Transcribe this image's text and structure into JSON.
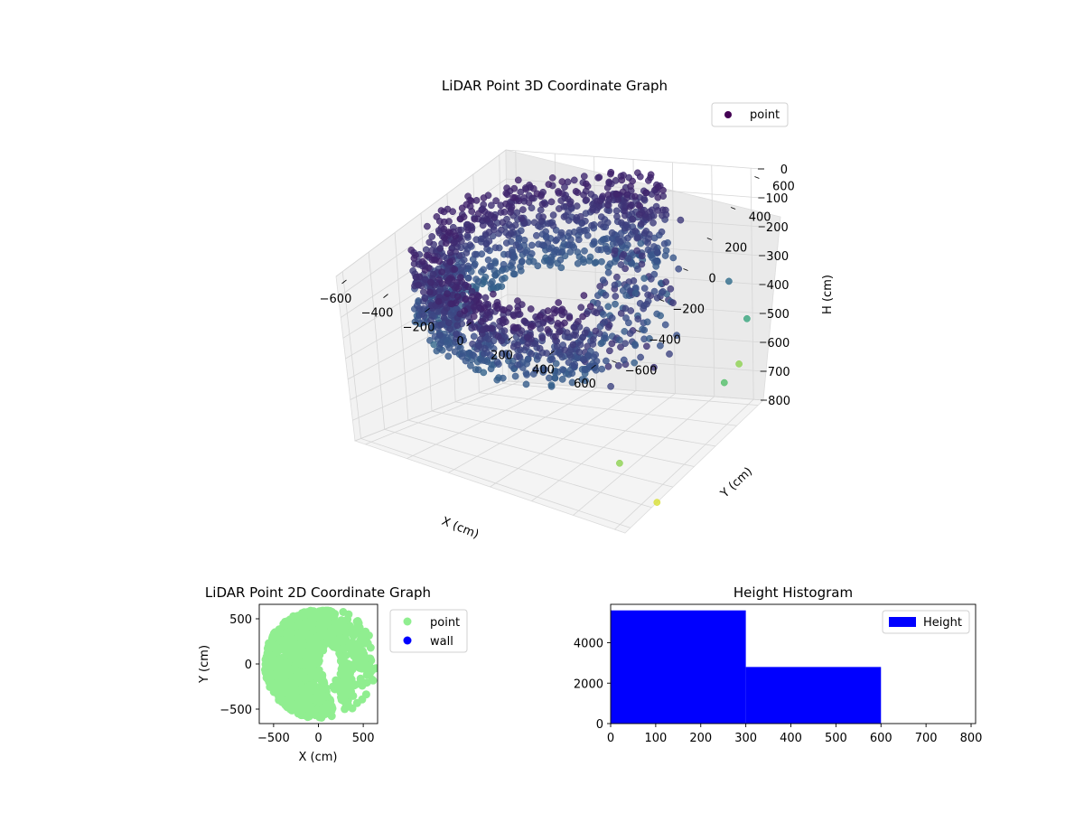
{
  "chart_data": [
    {
      "type": "scatter",
      "projection": "3d",
      "title": "LiDAR Point 3D Coordinate Graph",
      "xlabel": "X (cm)",
      "ylabel": "Y (cm)",
      "zlabel": "H (cm)",
      "x_ticks": [
        "−600",
        "−400",
        "−200",
        "0",
        "200",
        "400",
        "600"
      ],
      "y_ticks": [
        "−600",
        "−400",
        "−200",
        "0",
        "200",
        "400",
        "600"
      ],
      "z_ticks": [
        "0",
        "100",
        "200",
        "300",
        "400",
        "500",
        "600",
        "700",
        "800"
      ],
      "xlim": [
        -650,
        650
      ],
      "ylim": [
        -650,
        650
      ],
      "zlim": [
        0,
        800
      ],
      "z_axis_inverted": true,
      "grid": true,
      "colormap": "viridis",
      "legend": {
        "placement": "upper-right",
        "entries": [
          {
            "label": "point",
            "color": "#440154"
          }
        ]
      },
      "description_of_data": "Dense cylindrical shell of points at radius ~400-600 cm, heights mostly 0-300 cm, open toward +X",
      "series": [
        {
          "name": "point",
          "points_sample": [
            {
              "x": -550,
              "y": 0,
              "h": 200
            },
            {
              "x": -450,
              "y": -300,
              "h": 250
            },
            {
              "x": -300,
              "y": -500,
              "h": 280
            },
            {
              "x": 0,
              "y": -600,
              "h": 270
            },
            {
              "x": 300,
              "y": -550,
              "h": 260
            },
            {
              "x": -450,
              "y": 300,
              "h": 150
            },
            {
              "x": -250,
              "y": 500,
              "h": 120
            },
            {
              "x": 0,
              "y": 600,
              "h": 100
            },
            {
              "x": 300,
              "y": 550,
              "h": 150
            },
            {
              "x": 600,
              "y": 450,
              "h": 300
            },
            {
              "x": 600,
              "y": 600,
              "h": 500
            },
            {
              "x": 650,
              "y": 300,
              "h": 600
            },
            {
              "x": 450,
              "y": -300,
              "h": 700
            },
            {
              "x": 500,
              "y": 700,
              "h": 700
            },
            {
              "x": 650,
              "y": -350,
              "h": 800
            }
          ]
        }
      ]
    },
    {
      "type": "scatter",
      "title": "LiDAR Point 2D Coordinate Graph",
      "xlabel": "X (cm)",
      "ylabel": "Y (cm)",
      "x_ticks": [
        "−500",
        "0",
        "500"
      ],
      "y_ticks": [
        "500",
        "0",
        "−500"
      ],
      "xlim": [
        -660,
        660
      ],
      "ylim": [
        -660,
        660
      ],
      "legend": {
        "placement": "outside-right",
        "entries": [
          {
            "label": "point",
            "color": "#90ee90"
          },
          {
            "label": "wall",
            "color": "#0000ff"
          }
        ]
      },
      "series": [
        {
          "name": "point",
          "color": "#90ee90",
          "description_of_data": "Points fill a disc of radius ~600 cm around the origin, open toward +X"
        },
        {
          "name": "wall",
          "color": "#0000ff",
          "points": []
        }
      ]
    },
    {
      "type": "bar",
      "subtype": "histogram",
      "title": "Height Histogram",
      "x_ticks": [
        "0",
        "100",
        "200",
        "300",
        "400",
        "500",
        "600",
        "700",
        "800"
      ],
      "y_ticks": [
        "0",
        "2000",
        "4000"
      ],
      "xlim": [
        0,
        810
      ],
      "ylim": [
        0,
        5900
      ],
      "bins": [
        {
          "start": 0,
          "end": 300,
          "count": 5600
        },
        {
          "start": 300,
          "end": 600,
          "count": 2800
        },
        {
          "start": 600,
          "end": 810,
          "count": 0
        }
      ],
      "legend": {
        "placement": "upper-right",
        "entries": [
          {
            "label": "Height",
            "color": "#0000ff"
          }
        ]
      },
      "series": [
        {
          "name": "Height",
          "color": "#0000ff"
        }
      ]
    }
  ]
}
